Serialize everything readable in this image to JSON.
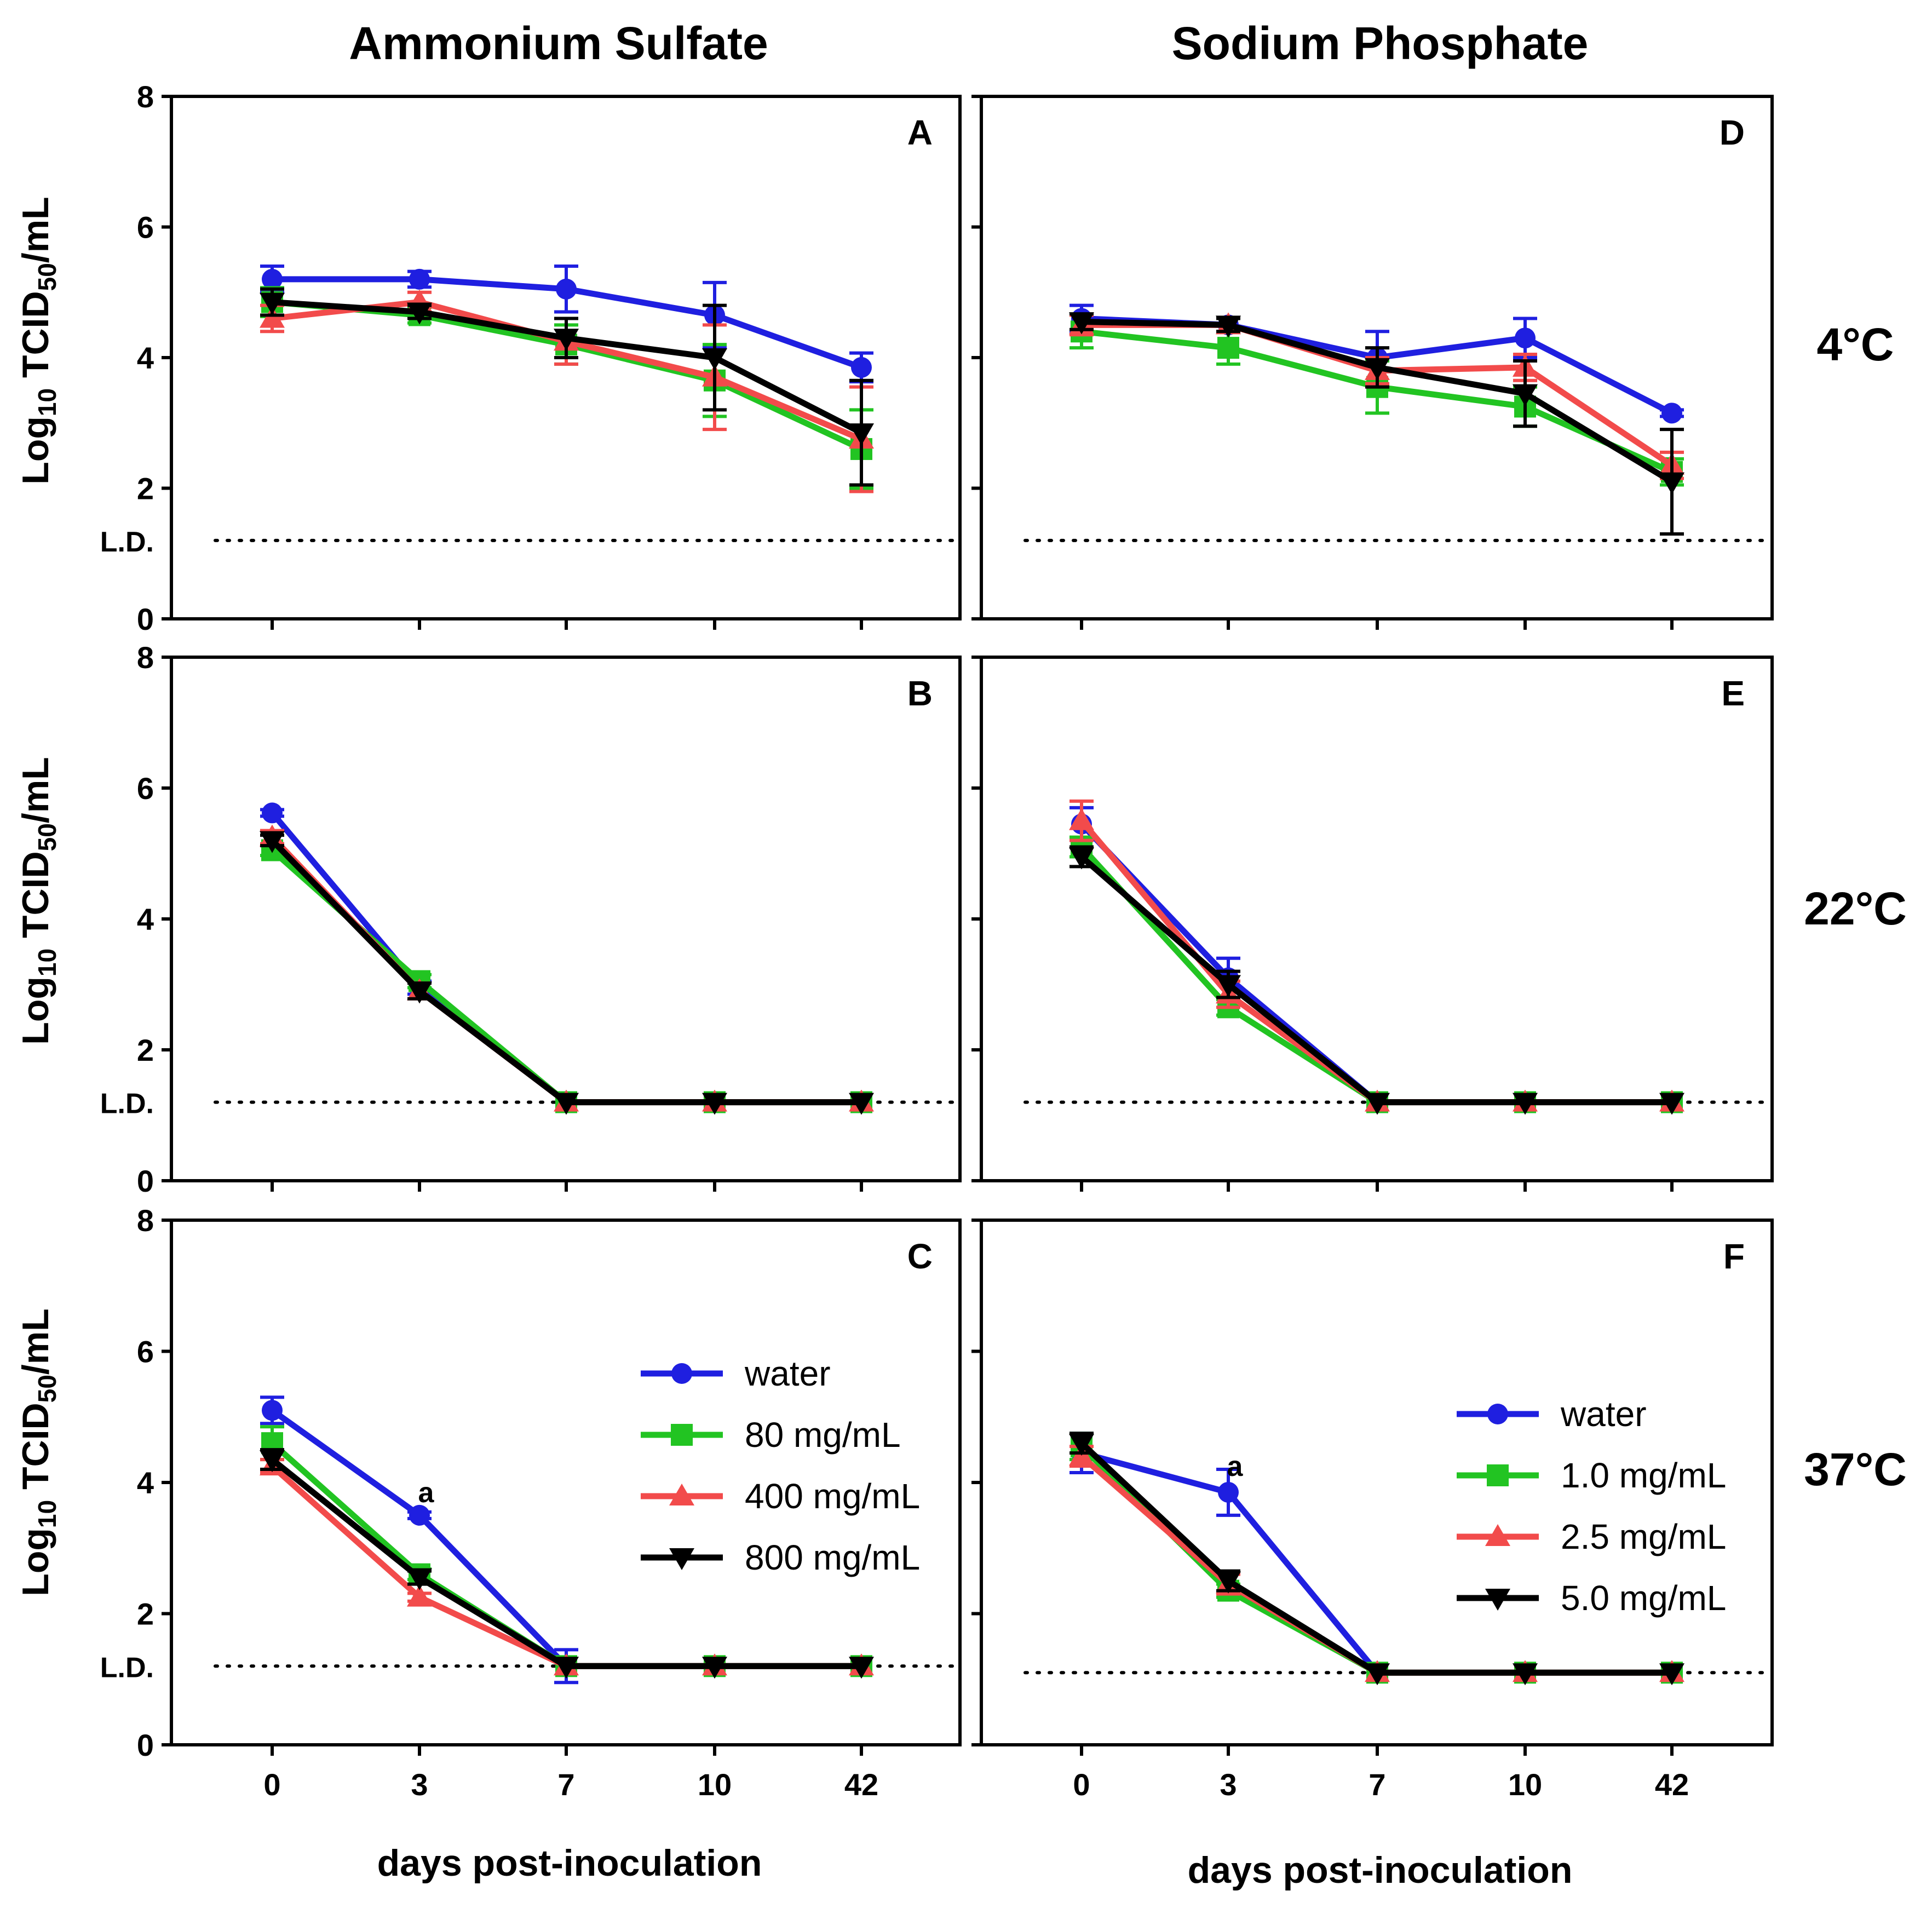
{
  "column_titles": [
    "Ammonium Sulfate",
    "Sodium Phosphate"
  ],
  "row_labels": [
    "4°C",
    "22°C",
    "37°C"
  ],
  "y_axis_title_main": "Log",
  "y_axis_title_sub": "10",
  "y_axis_title_rest": " TCID",
  "y_axis_title_sub2": "50",
  "y_axis_title_end": "/mL",
  "x_axis_title": "days post-inoculation",
  "ld_label": "L.D.",
  "colors": {
    "water": "#1f1fe0",
    "c1": "#22c422",
    "c2": "#f24b4b",
    "c3": "#000000"
  },
  "chart_data": [
    {
      "type": "line",
      "panel": "A",
      "title": "Ammonium Sulfate",
      "condition": "4°C",
      "xlabel": "days post-inoculation",
      "ylabel": "Log10 TCID50/mL",
      "categories": [
        "0",
        "3",
        "7",
        "10",
        "42"
      ],
      "ylim": [
        0,
        8
      ],
      "yticks": [
        "0",
        "2",
        "4",
        "6",
        "8"
      ],
      "detection_limit": 1.2,
      "series": [
        {
          "name": "water",
          "values": [
            5.2,
            5.2,
            5.05,
            4.65,
            3.85
          ],
          "errors": [
            0.2,
            0.12,
            0.35,
            0.5,
            0.22
          ]
        },
        {
          "name": "80 mg/mL",
          "values": [
            4.85,
            4.65,
            4.2,
            3.65,
            2.6
          ],
          "errors": [
            0.22,
            0.12,
            0.3,
            0.55,
            0.6
          ]
        },
        {
          "name": "400 mg/mL",
          "values": [
            4.6,
            4.85,
            4.25,
            3.7,
            2.75
          ],
          "errors": [
            0.2,
            0.15,
            0.35,
            0.8,
            0.8
          ]
        },
        {
          "name": "800 mg/mL",
          "values": [
            4.85,
            4.7,
            4.3,
            4.0,
            2.85
          ],
          "errors": [
            0.2,
            0.1,
            0.3,
            0.8,
            0.8
          ]
        }
      ],
      "annotations": []
    },
    {
      "type": "line",
      "panel": "B",
      "title": "Ammonium Sulfate",
      "condition": "22°C",
      "xlabel": "days post-inoculation",
      "ylabel": "Log10 TCID50/mL",
      "categories": [
        "0",
        "3",
        "7",
        "10",
        "42"
      ],
      "ylim": [
        0,
        8
      ],
      "yticks": [
        "0",
        "2",
        "4",
        "6",
        "8"
      ],
      "detection_limit": 1.2,
      "series": [
        {
          "name": "water",
          "values": [
            5.62,
            2.95,
            1.2,
            1.2,
            1.2
          ],
          "errors": [
            0.05,
            0.1,
            0,
            0,
            0
          ]
        },
        {
          "name": "80 mg/mL",
          "values": [
            5.05,
            3.05,
            1.2,
            1.2,
            1.2
          ],
          "errors": [
            0.08,
            0.1,
            0,
            0,
            0
          ]
        },
        {
          "name": "400 mg/mL",
          "values": [
            5.25,
            2.9,
            1.2,
            1.2,
            1.2
          ],
          "errors": [
            0.1,
            0.12,
            0,
            0,
            0
          ]
        },
        {
          "name": "800 mg/mL",
          "values": [
            5.2,
            2.9,
            1.2,
            1.2,
            1.2
          ],
          "errors": [
            0.08,
            0.12,
            0,
            0,
            0
          ]
        }
      ],
      "annotations": []
    },
    {
      "type": "line",
      "panel": "C",
      "title": "Ammonium Sulfate",
      "condition": "37°C",
      "xlabel": "days post-inoculation",
      "ylabel": "Log10 TCID50/mL",
      "categories": [
        "0",
        "3",
        "7",
        "10",
        "42"
      ],
      "ylim": [
        0,
        8
      ],
      "yticks": [
        "0",
        "2",
        "4",
        "6",
        "8"
      ],
      "detection_limit": 1.2,
      "series": [
        {
          "name": "water",
          "values": [
            5.1,
            3.5,
            1.2,
            1.2,
            1.2
          ],
          "errors": [
            0.2,
            0.05,
            0.25,
            0,
            0
          ]
        },
        {
          "name": "80 mg/mL",
          "values": [
            4.6,
            2.6,
            1.2,
            1.2,
            1.2
          ],
          "errors": [
            0.25,
            0.08,
            0,
            0,
            0
          ]
        },
        {
          "name": "400 mg/mL",
          "values": [
            4.25,
            2.25,
            1.2,
            1.2,
            1.2
          ],
          "errors": [
            0.1,
            0.06,
            0,
            0,
            0
          ]
        },
        {
          "name": "800 mg/mL",
          "values": [
            4.35,
            2.55,
            1.2,
            1.2,
            1.2
          ],
          "errors": [
            0.15,
            0.1,
            0,
            0,
            0
          ]
        }
      ],
      "legend": [
        "water",
        "80 mg/mL",
        "400 mg/mL",
        "800 mg/mL"
      ],
      "legend_position": "center-right",
      "annotations": [
        {
          "text": "a",
          "x": "3",
          "y": 3.85
        }
      ]
    },
    {
      "type": "line",
      "panel": "D",
      "title": "Sodium Phosphate",
      "condition": "4°C",
      "xlabel": "days post-inoculation",
      "ylabel": "Log10 TCID50/mL",
      "categories": [
        "0",
        "3",
        "7",
        "10",
        "42"
      ],
      "ylim": [
        0,
        8
      ],
      "yticks": [
        "0",
        "2",
        "4",
        "6",
        "8"
      ],
      "detection_limit": 1.2,
      "series": [
        {
          "name": "water",
          "values": [
            4.6,
            4.5,
            4.0,
            4.3,
            3.15
          ],
          "errors": [
            0.2,
            0.1,
            0.4,
            0.3,
            0.05
          ]
        },
        {
          "name": "1.0 mg/mL",
          "values": [
            4.4,
            4.15,
            3.55,
            3.25,
            2.25
          ],
          "errors": [
            0.25,
            0.25,
            0.4,
            0.3,
            0.2
          ]
        },
        {
          "name": "2.5 mg/mL",
          "values": [
            4.5,
            4.5,
            3.8,
            3.85,
            2.35
          ],
          "errors": [
            0.15,
            0.1,
            0.2,
            0.2,
            0.2
          ]
        },
        {
          "name": "5.0 mg/mL",
          "values": [
            4.55,
            4.5,
            3.85,
            3.45,
            2.1
          ],
          "errors": [
            0.12,
            0.1,
            0.3,
            0.5,
            0.8
          ]
        }
      ],
      "annotations": []
    },
    {
      "type": "line",
      "panel": "E",
      "title": "Sodium Phosphate",
      "condition": "22°C",
      "xlabel": "days post-inoculation",
      "ylabel": "Log10 TCID50/mL",
      "categories": [
        "0",
        "3",
        "7",
        "10",
        "42"
      ],
      "ylim": [
        0,
        8
      ],
      "yticks": [
        "0",
        "2",
        "4",
        "6",
        "8"
      ],
      "detection_limit": 1.2,
      "series": [
        {
          "name": "water",
          "values": [
            5.45,
            3.1,
            1.2,
            1.2,
            1.2
          ],
          "errors": [
            0.25,
            0.3,
            0,
            0,
            0
          ]
        },
        {
          "name": "1.0 mg/mL",
          "values": [
            5.1,
            2.65,
            1.2,
            1.2,
            1.2
          ],
          "errors": [
            0.15,
            0.12,
            0,
            0,
            0
          ]
        },
        {
          "name": "2.5 mg/mL",
          "values": [
            5.5,
            2.85,
            1.2,
            1.2,
            1.2
          ],
          "errors": [
            0.3,
            0.2,
            0,
            0,
            0
          ]
        },
        {
          "name": "5.0 mg/mL",
          "values": [
            4.95,
            3.0,
            1.2,
            1.2,
            1.2
          ],
          "errors": [
            0.15,
            0.2,
            0,
            0,
            0
          ]
        }
      ],
      "annotations": []
    },
    {
      "type": "line",
      "panel": "F",
      "title": "Sodium Phosphate",
      "condition": "37°C",
      "xlabel": "days post-inoculation",
      "ylabel": "Log10 TCID50/mL",
      "categories": [
        "0",
        "3",
        "7",
        "10",
        "42"
      ],
      "ylim": [
        0,
        8
      ],
      "yticks": [
        "0",
        "2",
        "4",
        "6",
        "8"
      ],
      "detection_limit": 1.1,
      "series": [
        {
          "name": "water",
          "values": [
            4.45,
            3.85,
            1.1,
            1.1,
            1.1
          ],
          "errors": [
            0.3,
            0.35,
            0,
            0,
            0
          ]
        },
        {
          "name": "1.0 mg/mL",
          "values": [
            4.55,
            2.35,
            1.1,
            1.1,
            1.1
          ],
          "errors": [
            0.2,
            0.1,
            0,
            0,
            0
          ]
        },
        {
          "name": "2.5 mg/mL",
          "values": [
            4.4,
            2.45,
            1.1,
            1.1,
            1.1
          ],
          "errors": [
            0.15,
            0.15,
            0,
            0,
            0
          ]
        },
        {
          "name": "5.0 mg/mL",
          "values": [
            4.6,
            2.5,
            1.1,
            1.1,
            1.1
          ],
          "errors": [
            0.15,
            0.15,
            0,
            0,
            0
          ]
        }
      ],
      "legend": [
        "water",
        "1.0 mg/mL",
        "2.5 mg/mL",
        "5.0 mg/mL"
      ],
      "legend_position": "center-right",
      "annotations": [
        {
          "text": "a",
          "x": "3",
          "y": 4.25
        }
      ]
    }
  ]
}
